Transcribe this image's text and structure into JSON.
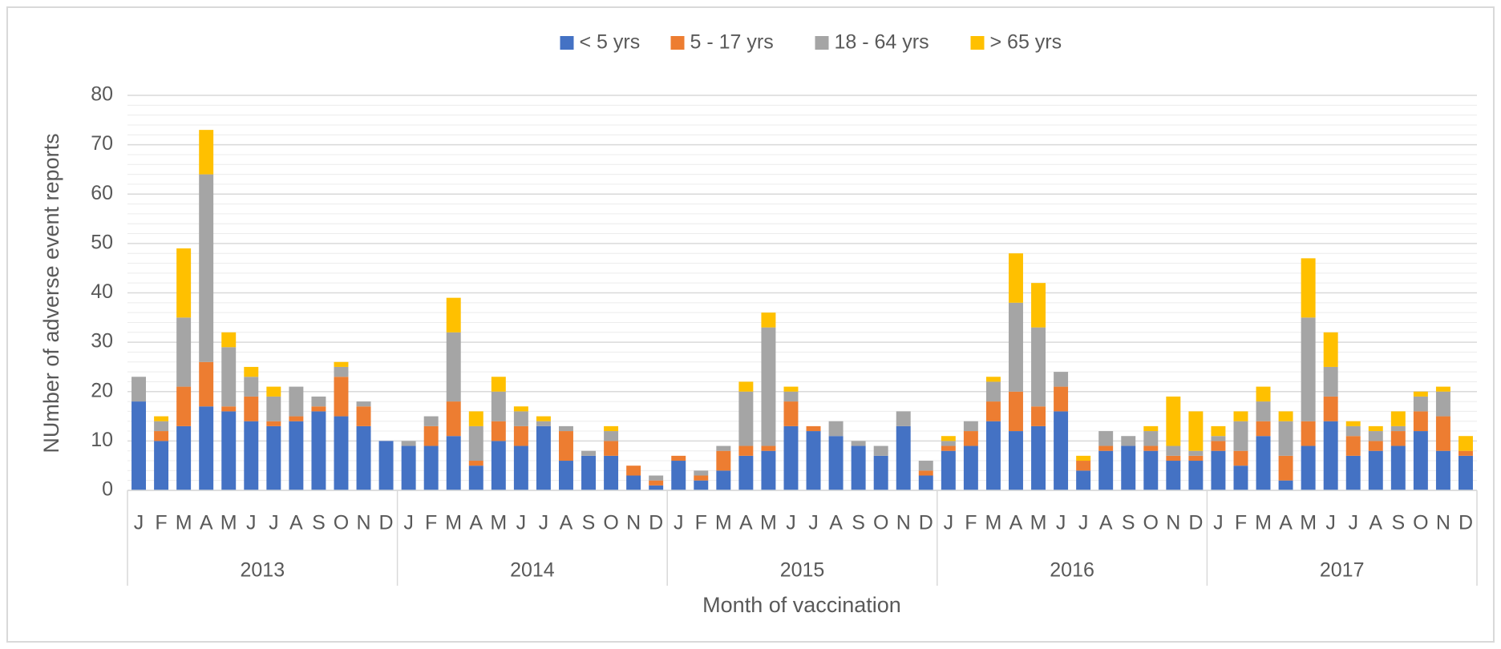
{
  "chart_data": {
    "type": "stacked_bar",
    "x_label": "Month of vaccination",
    "y_label": "NUmber of adverse event reports",
    "categories": [
      "J",
      "F",
      "M",
      "A",
      "M",
      "J",
      "J",
      "A",
      "S",
      "O",
      "N",
      "D",
      "J",
      "F",
      "M",
      "A",
      "M",
      "J",
      "J",
      "A",
      "S",
      "O",
      "N",
      "D",
      "J",
      "F",
      "M",
      "A",
      "M",
      "J",
      "J",
      "A",
      "S",
      "O",
      "N",
      "D",
      "J",
      "F",
      "M",
      "A",
      "M",
      "J",
      "J",
      "A",
      "S",
      "O",
      "N",
      "D",
      "J",
      "F",
      "M",
      "A",
      "M",
      "J",
      "J",
      "A",
      "S",
      "O",
      "N",
      "D"
    ],
    "years": [
      "2013",
      "2014",
      "2015",
      "2016",
      "2017"
    ],
    "ylim": [
      0,
      80
    ],
    "yticks": [
      0,
      10,
      20,
      30,
      40,
      50,
      60,
      70,
      80
    ],
    "minor_yticks": [
      2,
      4,
      6,
      8,
      12,
      14,
      16,
      18,
      22,
      24,
      26,
      28,
      32,
      34,
      36,
      38,
      42,
      44,
      46,
      48,
      52,
      54,
      56,
      58,
      62,
      64,
      66,
      68,
      72,
      74,
      76,
      78
    ],
    "grid": true,
    "legend": "top",
    "series": [
      {
        "name": "< 5 yrs",
        "color": "#4472c4",
        "values": [
          18,
          10,
          13,
          17,
          16,
          14,
          13,
          14,
          16,
          15,
          13,
          10,
          9,
          9,
          11,
          5,
          10,
          9,
          13,
          6,
          7,
          7,
          3,
          1,
          6,
          2,
          4,
          7,
          8,
          13,
          12,
          11,
          9,
          7,
          13,
          3,
          8,
          9,
          14,
          12,
          13,
          16,
          4,
          8,
          9,
          8,
          6,
          6,
          8,
          5,
          11,
          2,
          9,
          14,
          7,
          8,
          9,
          12,
          8,
          7
        ]
      },
      {
        "name": "5 - 17 yrs",
        "color": "#ed7d31",
        "values": [
          0,
          2,
          8,
          9,
          1,
          5,
          1,
          1,
          1,
          8,
          4,
          0,
          0,
          4,
          7,
          1,
          4,
          4,
          0,
          6,
          0,
          3,
          2,
          1,
          1,
          1,
          4,
          2,
          1,
          5,
          1,
          0,
          0,
          0,
          0,
          1,
          1,
          3,
          4,
          8,
          4,
          5,
          2,
          1,
          0,
          1,
          1,
          1,
          2,
          3,
          3,
          5,
          5,
          5,
          4,
          2,
          3,
          4,
          7,
          1
        ]
      },
      {
        "name": "18 - 64 yrs",
        "color": "#a5a5a5",
        "values": [
          5,
          2,
          14,
          38,
          12,
          4,
          5,
          6,
          2,
          2,
          1,
          0,
          1,
          2,
          14,
          7,
          6,
          3,
          1,
          1,
          1,
          2,
          0,
          1,
          0,
          1,
          1,
          11,
          24,
          2,
          0,
          3,
          1,
          2,
          3,
          2,
          1,
          2,
          4,
          18,
          16,
          3,
          0,
          3,
          2,
          3,
          2,
          1,
          1,
          6,
          4,
          7,
          21,
          6,
          2,
          2,
          1,
          3,
          5,
          0
        ]
      },
      {
        "name": "> 65 yrs",
        "color": "#ffc000",
        "values": [
          0,
          1,
          14,
          9,
          3,
          2,
          2,
          0,
          0,
          1,
          0,
          0,
          0,
          0,
          7,
          3,
          3,
          1,
          1,
          0,
          0,
          1,
          0,
          0,
          0,
          0,
          0,
          2,
          3,
          1,
          0,
          0,
          0,
          0,
          0,
          0,
          1,
          0,
          1,
          10,
          9,
          0,
          1,
          0,
          0,
          1,
          10,
          8,
          2,
          2,
          3,
          2,
          12,
          7,
          1,
          1,
          3,
          1,
          1,
          3
        ]
      }
    ]
  }
}
